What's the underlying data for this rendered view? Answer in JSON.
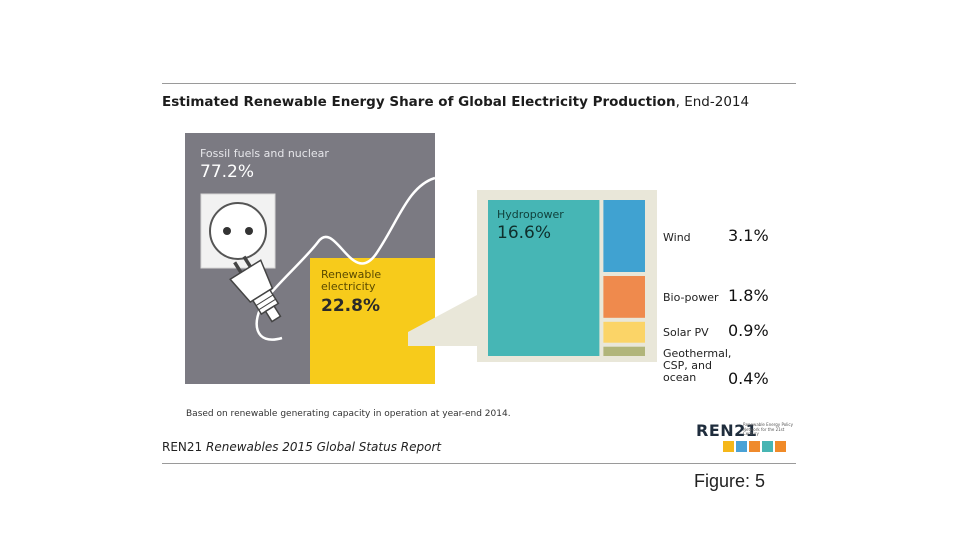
{
  "chart_data": {
    "type": "treemap",
    "title": "Estimated Renewable Energy Share of Global Electricity Production",
    "subtitle": ", End-2014",
    "categories": [
      "Fossil fuels and nuclear",
      "Renewable electricity",
      "Hydropower",
      "Wind",
      "Bio-power",
      "Solar PV",
      "Geothermal, CSP, and ocean"
    ],
    "values": [
      77.2,
      22.8,
      16.6,
      3.1,
      1.8,
      0.9,
      0.4
    ],
    "value_labels": [
      "77.2%",
      "22.8%",
      "16.6%",
      "3.1%",
      "1.8%",
      "0.9%",
      "0.4%"
    ],
    "unit": "%",
    "breakdown_of": "Renewable electricity",
    "colors": [
      "#7b7a82",
      "#f7cb1b",
      "#46b6b5",
      "#40a2d1",
      "#ef8a4d",
      "#fbd467",
      "#b1b57a"
    ],
    "note": "Based on renewable generating capacity in operation at year-end 2014."
  },
  "source": {
    "org": "REN21",
    "report": "Renewables 2015 Global Status Report"
  },
  "logo": {
    "name": "REN21",
    "tagline": "Renewable Energy Policy Network for the 21st Century",
    "tile_colors": [
      "#f5b71a",
      "#4aa2d6",
      "#ef8a2c",
      "#47b5b3",
      "#f08a28"
    ]
  },
  "figure_label": "Figure: 5"
}
